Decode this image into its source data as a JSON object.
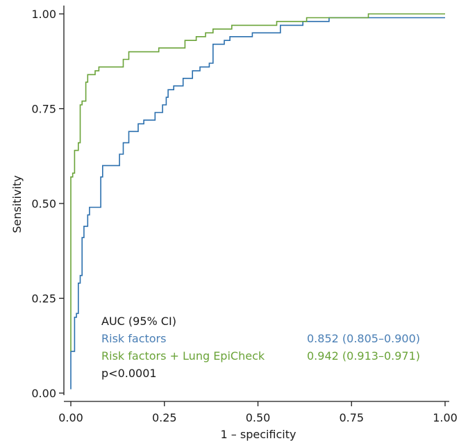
{
  "chart_data": {
    "type": "line",
    "title": "",
    "xlabel": "1 – specificity",
    "ylabel": "Sensitivity",
    "xlim": [
      0,
      1
    ],
    "ylim": [
      0,
      1
    ],
    "x_ticks": [
      "0.00",
      "0.25",
      "0.50",
      "0.75",
      "1.00"
    ],
    "y_ticks": [
      "0.00",
      "0.25",
      "0.50",
      "0.75",
      "1.00"
    ],
    "grid": false,
    "legend": {
      "placement": "bottom-left",
      "title": "AUC (95% CI)",
      "note": "p<0.0001"
    },
    "series": [
      {
        "name": "Risk factors",
        "auc": "0.852 (0.805–0.900)",
        "color": "#2a6fae",
        "points": [
          [
            0.0,
            0.01
          ],
          [
            0.0,
            0.11
          ],
          [
            0.01,
            0.11
          ],
          [
            0.01,
            0.2
          ],
          [
            0.015,
            0.21
          ],
          [
            0.02,
            0.29
          ],
          [
            0.025,
            0.31
          ],
          [
            0.03,
            0.41
          ],
          [
            0.035,
            0.44
          ],
          [
            0.045,
            0.47
          ],
          [
            0.05,
            0.49
          ],
          [
            0.07,
            0.49
          ],
          [
            0.08,
            0.57
          ],
          [
            0.085,
            0.6
          ],
          [
            0.13,
            0.6
          ],
          [
            0.13,
            0.63
          ],
          [
            0.14,
            0.66
          ],
          [
            0.155,
            0.69
          ],
          [
            0.17,
            0.69
          ],
          [
            0.18,
            0.71
          ],
          [
            0.195,
            0.72
          ],
          [
            0.215,
            0.72
          ],
          [
            0.225,
            0.74
          ],
          [
            0.245,
            0.76
          ],
          [
            0.255,
            0.78
          ],
          [
            0.26,
            0.8
          ],
          [
            0.275,
            0.81
          ],
          [
            0.3,
            0.83
          ],
          [
            0.325,
            0.85
          ],
          [
            0.345,
            0.86
          ],
          [
            0.37,
            0.87
          ],
          [
            0.38,
            0.92
          ],
          [
            0.41,
            0.93
          ],
          [
            0.425,
            0.94
          ],
          [
            0.485,
            0.95
          ],
          [
            0.56,
            0.97
          ],
          [
            0.62,
            0.98
          ],
          [
            0.69,
            0.99
          ],
          [
            0.83,
            0.99
          ],
          [
            1.0,
            0.99
          ]
        ]
      },
      {
        "name": "Risk factors + Lung EpiCheck",
        "auc": "0.942 (0.913–0.971)",
        "color": "#6aa338",
        "points": [
          [
            0.0,
            0.11
          ],
          [
            0.0,
            0.57
          ],
          [
            0.005,
            0.58
          ],
          [
            0.01,
            0.64
          ],
          [
            0.02,
            0.66
          ],
          [
            0.025,
            0.76
          ],
          [
            0.03,
            0.77
          ],
          [
            0.04,
            0.82
          ],
          [
            0.045,
            0.84
          ],
          [
            0.065,
            0.85
          ],
          [
            0.075,
            0.86
          ],
          [
            0.14,
            0.88
          ],
          [
            0.155,
            0.9
          ],
          [
            0.235,
            0.91
          ],
          [
            0.305,
            0.93
          ],
          [
            0.335,
            0.94
          ],
          [
            0.36,
            0.95
          ],
          [
            0.38,
            0.96
          ],
          [
            0.43,
            0.97
          ],
          [
            0.55,
            0.98
          ],
          [
            0.63,
            0.99
          ],
          [
            0.795,
            1.0
          ],
          [
            1.0,
            1.0
          ]
        ]
      }
    ]
  }
}
